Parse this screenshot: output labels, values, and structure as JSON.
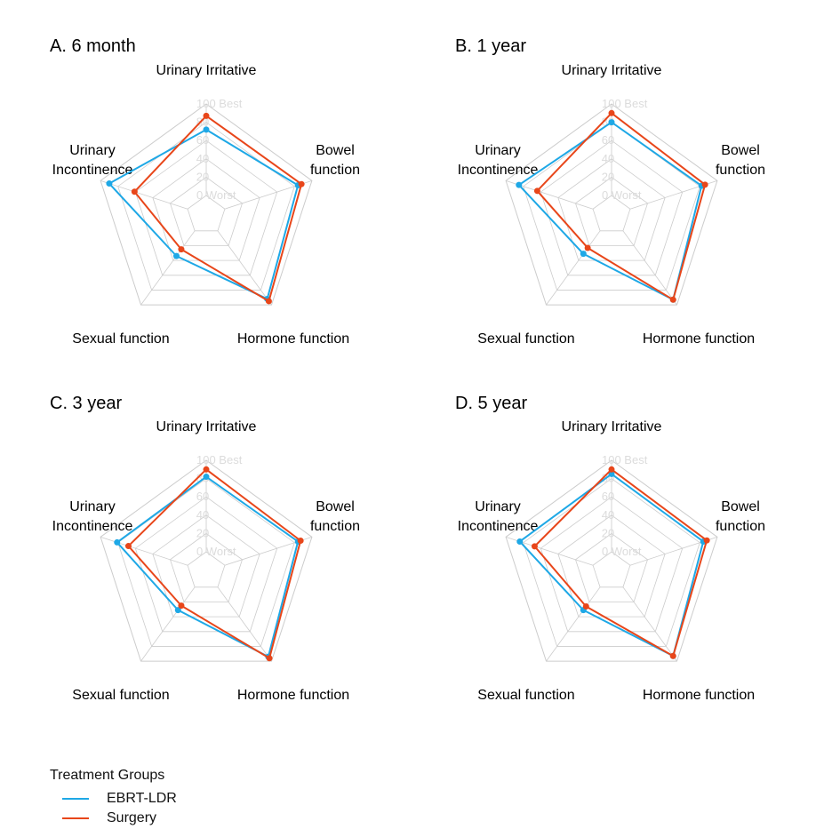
{
  "chart_data": [
    {
      "type": "radar",
      "title": "A. 6 month",
      "axes": [
        "Urinary Irritative",
        "Bowel function",
        "Hormone function",
        "Sexual function",
        "Urinary Incontinence"
      ],
      "scale": {
        "min": 0,
        "max": 100,
        "ticks": [
          0,
          20,
          40,
          60,
          80,
          100
        ],
        "max_label": "Best",
        "min_label": "Worst"
      },
      "series": [
        {
          "name": "EBRT-LDR",
          "values": [
            72,
            84,
            92,
            34,
            90
          ]
        },
        {
          "name": "Surgery",
          "values": [
            87,
            88,
            95,
            25,
            61
          ]
        }
      ]
    },
    {
      "type": "radar",
      "title": "B. 1 year",
      "axes": [
        "Urinary Irritative",
        "Bowel function",
        "Hormone function",
        "Sexual function",
        "Urinary Incontinence"
      ],
      "scale": {
        "min": 0,
        "max": 100,
        "ticks": [
          0,
          20,
          40,
          60,
          80,
          100
        ],
        "max_label": "Best",
        "min_label": "Worst"
      },
      "series": [
        {
          "name": "EBRT-LDR",
          "values": [
            80,
            82,
            93,
            31,
            85
          ]
        },
        {
          "name": "Surgery",
          "values": [
            90,
            86,
            93,
            23,
            64
          ]
        }
      ]
    },
    {
      "type": "radar",
      "title": "C. 3 year",
      "axes": [
        "Urinary Irritative",
        "Bowel function",
        "Hormone function",
        "Sexual function",
        "Urinary Incontinence"
      ],
      "scale": {
        "min": 0,
        "max": 100,
        "ticks": [
          0,
          20,
          40,
          60,
          80,
          100
        ],
        "max_label": "Best",
        "min_label": "Worst"
      },
      "series": [
        {
          "name": "EBRT-LDR",
          "values": [
            82,
            84,
            94,
            31,
            81
          ]
        },
        {
          "name": "Surgery",
          "values": [
            90,
            87,
            96,
            25,
            68
          ]
        }
      ]
    },
    {
      "type": "radar",
      "title": "D. 5 year",
      "axes": [
        "Urinary Irritative",
        "Bowel function",
        "Hormone function",
        "Sexual function",
        "Urinary Incontinence"
      ],
      "scale": {
        "min": 0,
        "max": 100,
        "ticks": [
          0,
          20,
          40,
          60,
          80,
          100
        ],
        "max_label": "Best",
        "min_label": "Worst"
      },
      "series": [
        {
          "name": "EBRT-LDR",
          "values": [
            85,
            84,
            93,
            31,
            84
          ]
        },
        {
          "name": "Surgery",
          "values": [
            90,
            88,
            93,
            26,
            67
          ]
        }
      ]
    }
  ],
  "legend": {
    "title": "Treatment Groups",
    "items": [
      {
        "name": "EBRT-LDR",
        "color": "#1ea8e6"
      },
      {
        "name": "Surgery",
        "color": "#e8461a"
      }
    ]
  },
  "colors": {
    "EBRT-LDR": "#1ea8e6",
    "Surgery": "#e8461a",
    "grid": "#cccccc",
    "tick_label": "#dcdcdc"
  }
}
